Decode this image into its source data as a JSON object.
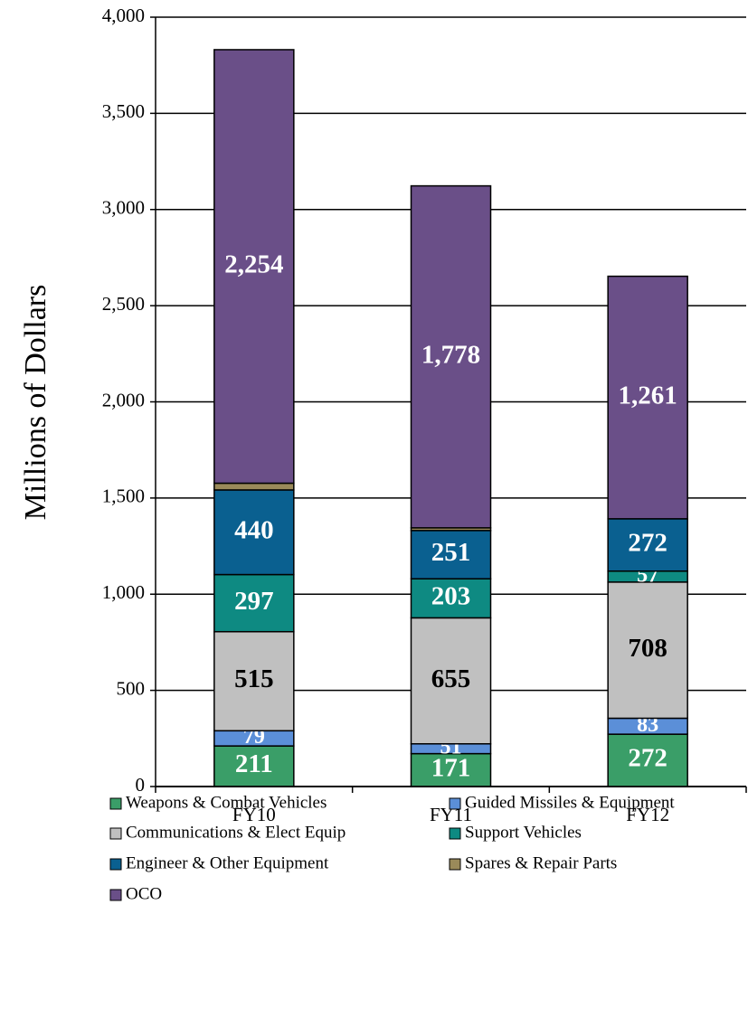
{
  "chart_data": {
    "type": "stacked-bar",
    "y_label": "Millions of Dollars",
    "categories": [
      "FY10",
      "FY11",
      "FY12"
    ],
    "series": [
      {
        "name": "Weapons & Combat Vehicles",
        "color": "#3a9e68",
        "values": [
          211,
          171,
          272
        ]
      },
      {
        "name": "Guided Missiles & Equipment",
        "color": "#5b8fd8",
        "values": [
          79,
          51,
          83
        ]
      },
      {
        "name": "Communications & Elect Equip",
        "color": "#c0c0c0",
        "values": [
          515,
          655,
          708
        ]
      },
      {
        "name": "Support Vehicles",
        "color": "#0e8a82",
        "values": [
          297,
          203,
          57
        ]
      },
      {
        "name": "Engineer & Other Equipment",
        "color": "#0a6090",
        "values": [
          440,
          251,
          272
        ]
      },
      {
        "name": "Spares & Repair Parts",
        "color": "#9a8a5a",
        "values": [
          35,
          14,
          0
        ]
      },
      {
        "name": "OCO",
        "color": "#6a4f88",
        "values": [
          2254,
          1778,
          1261
        ],
        "value_labels": [
          "2,254",
          "1,778",
          "1,261"
        ]
      }
    ],
    "ylim": [
      0,
      4000
    ],
    "yticks": [
      0,
      500,
      {
        "value": 1000,
        "label": "1,000"
      },
      {
        "value": 1500,
        "label": "1,500"
      },
      {
        "value": 2000,
        "label": "2,000"
      },
      {
        "value": 2500,
        "label": "2,500"
      },
      {
        "value": 3000,
        "label": "3,000"
      },
      {
        "value": 3500,
        "label": "3,500"
      },
      {
        "value": 4000,
        "label": "4,000"
      }
    ],
    "grid": true
  }
}
